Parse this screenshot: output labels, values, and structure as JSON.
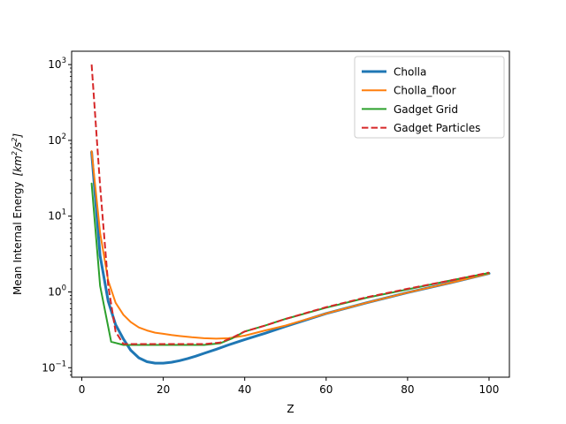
{
  "chart_data": {
    "type": "line",
    "title": "",
    "xlabel": "Z",
    "ylabel": "Mean Internal Energy",
    "ylabel_unit_tex": "[km²/s²]",
    "ylabel_unit": {
      "open": "[",
      "base1": "km",
      "exp1": "2",
      "sep": "/",
      "base2": "s",
      "exp2": "2",
      "close": "]"
    },
    "xlim": [
      -2.5,
      105
    ],
    "ylim": [
      0.075,
      1500
    ],
    "yscale": "log",
    "grid": false,
    "legend": "top-right",
    "x_ticks": [
      0,
      20,
      40,
      60,
      80,
      100
    ],
    "x_tick_labels": [
      "0",
      "20",
      "40",
      "60",
      "80",
      "100"
    ],
    "y_ticks": [
      0.1,
      1,
      10,
      100,
      1000
    ],
    "y_tick_labels": [
      {
        "base": "10",
        "exp": "−1"
      },
      {
        "base": "10",
        "exp": "0"
      },
      {
        "base": "10",
        "exp": "1"
      },
      {
        "base": "10",
        "exp": "2"
      },
      {
        "base": "10",
        "exp": "3"
      }
    ],
    "series": [
      {
        "name": "Cholla",
        "color": "#1f77b4",
        "dash": "solid",
        "width": 3,
        "x": [
          2.4,
          4.5,
          6.5,
          8.3,
          10.2,
          12.0,
          14.0,
          16.0,
          18.0,
          20.0,
          22.0,
          24.0,
          26.0,
          28.0,
          30.0,
          33.0,
          36.0,
          40.0,
          45.0,
          50.0,
          60.0,
          70.0,
          80.0,
          90.0,
          100.0
        ],
        "y": [
          70,
          3.0,
          0.75,
          0.37,
          0.24,
          0.17,
          0.135,
          0.12,
          0.115,
          0.115,
          0.118,
          0.124,
          0.132,
          0.142,
          0.155,
          0.175,
          0.2,
          0.235,
          0.285,
          0.35,
          0.52,
          0.72,
          0.98,
          1.3,
          1.75
        ]
      },
      {
        "name": "Cholla_floor",
        "color": "#ff7f0e",
        "dash": "solid",
        "width": 2,
        "x": [
          2.4,
          4.5,
          6.5,
          8.3,
          10.2,
          12.0,
          14.0,
          16.0,
          18.0,
          20.0,
          22.0,
          24.0,
          27.0,
          30.0,
          33.0,
          36.0,
          40.0,
          45.0,
          50.0,
          60.0,
          70.0,
          80.0,
          90.0,
          100.0
        ],
        "y": [
          72,
          6.0,
          1.4,
          0.72,
          0.5,
          0.4,
          0.34,
          0.31,
          0.29,
          0.28,
          0.27,
          0.262,
          0.252,
          0.245,
          0.242,
          0.245,
          0.265,
          0.31,
          0.36,
          0.52,
          0.72,
          0.98,
          1.3,
          1.75
        ]
      },
      {
        "name": "Gadget Grid",
        "color": "#2ca02c",
        "dash": "solid",
        "width": 2,
        "x": [
          2.4,
          4.5,
          7.2,
          10.2,
          12.0,
          14.0,
          16.0,
          18.0,
          20.0,
          25.0,
          30.0,
          34.0,
          37.0,
          40.0,
          45.0,
          50.0,
          60.0,
          70.0,
          80.0,
          90.0,
          100.0
        ],
        "y": [
          27,
          1.2,
          0.22,
          0.2,
          0.2,
          0.2,
          0.2,
          0.2,
          0.2,
          0.2,
          0.2,
          0.21,
          0.245,
          0.3,
          0.36,
          0.44,
          0.62,
          0.84,
          1.08,
          1.4,
          1.78
        ]
      },
      {
        "name": "Gadget Particles",
        "color": "#d62728",
        "dash": "dashed",
        "width": 2,
        "x": [
          2.4,
          4.5,
          6.5,
          8.3,
          10.2,
          12.0,
          14.0,
          16.0,
          18.0,
          20.0,
          25.0,
          30.0,
          34.0,
          37.0,
          40.0,
          45.0,
          50.0,
          60.0,
          70.0,
          80.0,
          90.0,
          100.0
        ],
        "y": [
          1000,
          25,
          1.2,
          0.3,
          0.205,
          0.205,
          0.205,
          0.205,
          0.205,
          0.205,
          0.205,
          0.205,
          0.215,
          0.25,
          0.3,
          0.36,
          0.44,
          0.63,
          0.85,
          1.1,
          1.4,
          1.8
        ]
      }
    ]
  }
}
